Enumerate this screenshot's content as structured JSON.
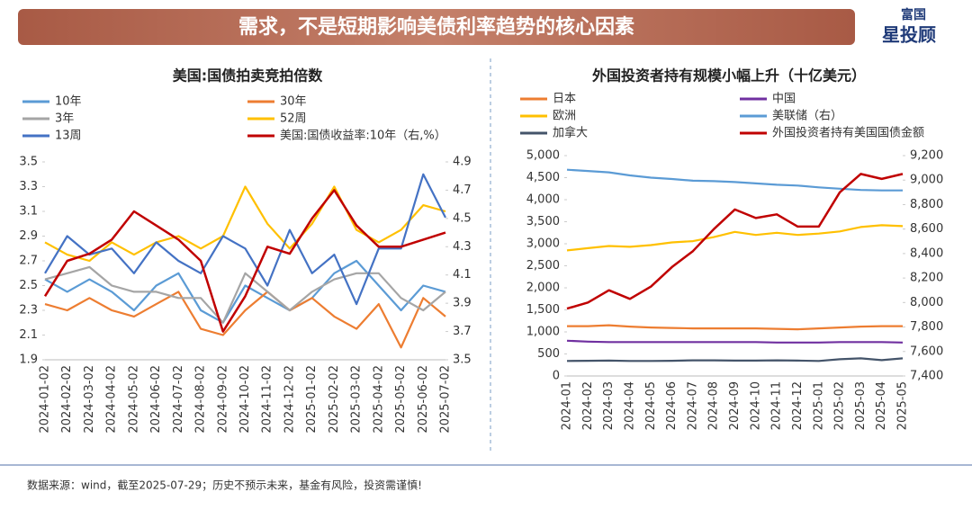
{
  "header": {
    "title": "需求，不是短期影响美债利率趋势的核心因素",
    "logo_top": "富国",
    "logo_bottom": "星投顾"
  },
  "footer": "数据来源：wind，截至2025-07-29；历史不预示未来，基金有风险，投资需谨慎!",
  "chart_data": [
    {
      "type": "line",
      "title": "美国:国债拍卖竞拍倍数",
      "categories": [
        "2024-01-02",
        "2024-02-02",
        "2024-03-02",
        "2024-04-02",
        "2024-05-02",
        "2024-06-02",
        "2024-07-02",
        "2024-08-02",
        "2024-09-02",
        "2024-10-02",
        "2024-11-02",
        "2024-12-02",
        "2025-01-02",
        "2025-02-02",
        "2025-03-02",
        "2025-04-02",
        "2025-05-02",
        "2025-06-02",
        "2025-07-02"
      ],
      "ylim": [
        1.9,
        3.5
      ],
      "yticks": [
        1.9,
        2.1,
        2.3,
        2.5,
        2.7,
        2.9,
        3.1,
        3.3,
        3.5
      ],
      "y2lim": [
        3.5,
        4.9
      ],
      "y2ticks": [
        3.5,
        3.7,
        3.9,
        4.1,
        4.3,
        4.5,
        4.7,
        4.9
      ],
      "series": [
        {
          "name": "10年",
          "color": "#5b9bd5",
          "values": [
            2.55,
            2.45,
            2.55,
            2.45,
            2.3,
            2.5,
            2.6,
            2.3,
            2.2,
            2.5,
            2.4,
            2.3,
            2.4,
            2.6,
            2.7,
            2.5,
            2.3,
            2.5,
            2.45
          ]
        },
        {
          "name": "30年",
          "color": "#ed7d31",
          "values": [
            2.35,
            2.3,
            2.4,
            2.3,
            2.25,
            2.35,
            2.45,
            2.15,
            2.1,
            2.3,
            2.45,
            2.3,
            2.4,
            2.25,
            2.15,
            2.35,
            2.0,
            2.4,
            2.25
          ]
        },
        {
          "name": "3年",
          "color": "#a5a5a5",
          "values": [
            2.55,
            2.6,
            2.65,
            2.5,
            2.45,
            2.45,
            2.4,
            2.4,
            2.2,
            2.6,
            2.45,
            2.3,
            2.45,
            2.55,
            2.6,
            2.6,
            2.4,
            2.3,
            2.45
          ]
        },
        {
          "name": "52周",
          "color": "#ffc000",
          "values": [
            2.85,
            2.75,
            2.7,
            2.85,
            2.75,
            2.85,
            2.9,
            2.8,
            2.9,
            3.3,
            3.0,
            2.8,
            3.0,
            3.3,
            2.95,
            2.85,
            2.95,
            3.15,
            3.1
          ]
        },
        {
          "name": "13周",
          "color": "#4472c4",
          "values": [
            2.6,
            2.9,
            2.75,
            2.8,
            2.6,
            2.85,
            2.7,
            2.6,
            2.9,
            2.8,
            2.5,
            2.95,
            2.6,
            2.75,
            2.35,
            2.8,
            2.8,
            3.4,
            3.05
          ]
        },
        {
          "name": "美国:国债收益率:10年（右,%）",
          "color": "#c00000",
          "axis": "y2",
          "values": [
            3.95,
            4.2,
            4.25,
            4.35,
            4.55,
            4.45,
            4.35,
            4.2,
            3.7,
            3.95,
            4.3,
            4.25,
            4.5,
            4.7,
            4.45,
            4.3,
            4.3,
            4.35,
            4.4
          ]
        }
      ]
    },
    {
      "type": "line",
      "title": "外国投资者持有规模小幅上升（十亿美元）",
      "categories": [
        "2024-01",
        "2024-02",
        "2024-03",
        "2024-04",
        "2024-05",
        "2024-06",
        "2024-07",
        "2024-08",
        "2024-09",
        "2024-10",
        "2024-11",
        "2024-12",
        "2025-01",
        "2025-02",
        "2025-03",
        "2025-04",
        "2025-05"
      ],
      "ylim": [
        0,
        5000
      ],
      "yticks": [
        0,
        500,
        {
          "value": 1000,
          "label": "1,000"
        },
        {
          "value": 1500,
          "label": "1,500"
        },
        {
          "value": 2000,
          "label": "2,000"
        },
        {
          "value": 2500,
          "label": "2,500"
        },
        {
          "value": 3000,
          "label": "3,000"
        },
        {
          "value": 3500,
          "label": "3,500"
        },
        {
          "value": 4000,
          "label": "4,000"
        },
        {
          "value": 4500,
          "label": "4,500"
        },
        {
          "value": 5000,
          "label": "5,000"
        }
      ],
      "y2lim": [
        7400,
        9200
      ],
      "y2ticks": [
        {
          "value": 7400,
          "label": "7,400"
        },
        {
          "value": 7600,
          "label": "7,600"
        },
        {
          "value": 7800,
          "label": "7,800"
        },
        {
          "value": 8000,
          "label": "8,000"
        },
        {
          "value": 8200,
          "label": "8,200"
        },
        {
          "value": 8400,
          "label": "8,400"
        },
        {
          "value": 8600,
          "label": "8,600"
        },
        {
          "value": 8800,
          "label": "8,800"
        },
        {
          "value": 9000,
          "label": "9,000"
        },
        {
          "value": 9200,
          "label": "9,200"
        }
      ],
      "series": [
        {
          "name": "日本",
          "color": "#ed7d31",
          "values": [
            1130,
            1130,
            1150,
            1120,
            1100,
            1090,
            1080,
            1080,
            1080,
            1080,
            1070,
            1060,
            1080,
            1100,
            1120,
            1130,
            1130
          ]
        },
        {
          "name": "中国",
          "color": "#7030a0",
          "values": [
            800,
            780,
            770,
            770,
            770,
            770,
            770,
            770,
            770,
            770,
            760,
            760,
            760,
            770,
            770,
            770,
            760
          ]
        },
        {
          "name": "欧洲",
          "color": "#ffc000",
          "values": [
            2850,
            2900,
            2950,
            2930,
            2970,
            3030,
            3060,
            3150,
            3270,
            3200,
            3250,
            3200,
            3230,
            3280,
            3380,
            3420,
            3400
          ]
        },
        {
          "name": "美联储（右）",
          "color": "#5b9bd5",
          "axis": "y2",
          "values": [
            9085,
            9074,
            9063,
            9038,
            9020,
            9009,
            8995,
            8991,
            8984,
            8973,
            8962,
            8955,
            8941,
            8930,
            8919,
            8916,
            8916
          ]
        },
        {
          "name": "加拿大",
          "color": "#44546a",
          "values": [
            340,
            345,
            350,
            340,
            340,
            345,
            355,
            355,
            350,
            350,
            355,
            350,
            340,
            380,
            400,
            360,
            400
          ]
        },
        {
          "name": "外国投资者持有美国国债金额",
          "color": "#c00000",
          "axis": "y2",
          "values": [
            7950,
            8000,
            8100,
            8030,
            8130,
            8290,
            8420,
            8600,
            8760,
            8690,
            8720,
            8620,
            8620,
            8900,
            9050,
            9010,
            9050
          ]
        }
      ]
    }
  ]
}
